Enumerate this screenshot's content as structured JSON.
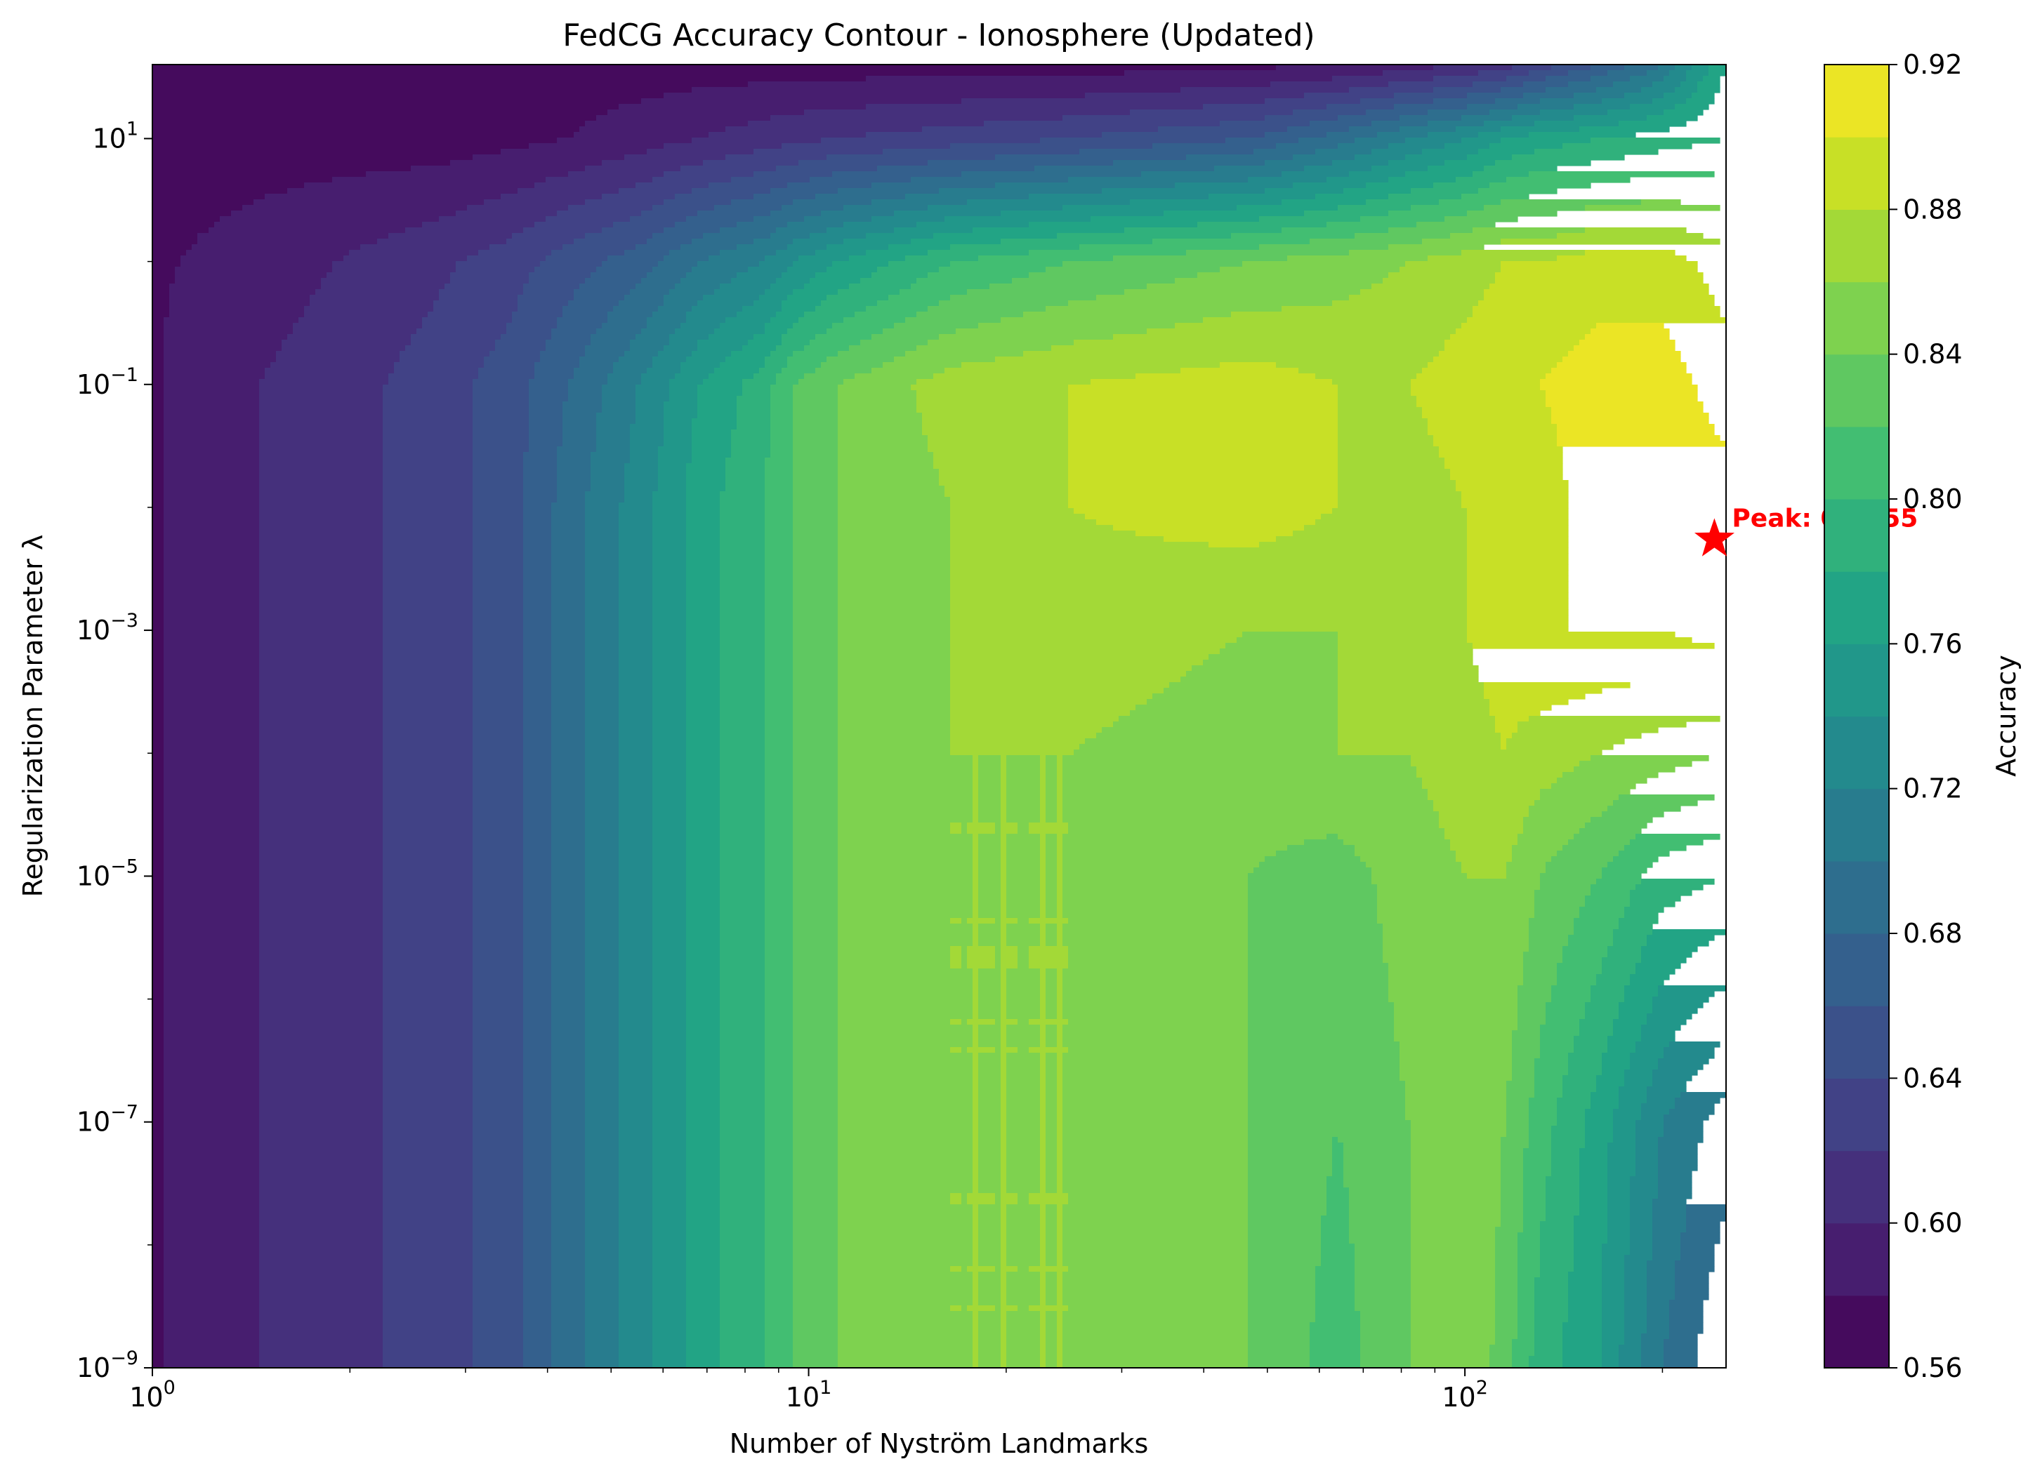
{
  "chart_data": {
    "type": "contour",
    "title": "FedCG Accuracy Contour - Ionosphere (Updated)",
    "xlabel": "Number of Nyström Landmarks",
    "ylabel": "Regularization Parameter λ",
    "xscale": "log",
    "yscale": "log",
    "xlim": [
      1,
      250
    ],
    "ylim": [
      1e-09,
      40
    ],
    "x_ticks": [
      {
        "value": 1,
        "base": "10",
        "exp": "0"
      },
      {
        "value": 10,
        "base": "10",
        "exp": "1"
      },
      {
        "value": 100,
        "base": "10",
        "exp": "2"
      }
    ],
    "y_ticks": [
      {
        "value": 1e-09,
        "base": "10",
        "exp": "−9"
      },
      {
        "value": 1e-07,
        "base": "10",
        "exp": "−7"
      },
      {
        "value": 1e-05,
        "base": "10",
        "exp": "−5"
      },
      {
        "value": 0.001,
        "base": "10",
        "exp": "−3"
      },
      {
        "value": 0.1,
        "base": "10",
        "exp": "−1"
      },
      {
        "value": 10,
        "base": "10",
        "exp": "1"
      }
    ],
    "colorbar": {
      "label": "Accuracy",
      "colormap": "viridis",
      "min": 0.56,
      "max": 0.92,
      "level_step": 0.02,
      "ticks": [
        "0.56",
        "0.60",
        "0.64",
        "0.68",
        "0.72",
        "0.76",
        "0.80",
        "0.84",
        "0.88",
        "0.92"
      ]
    },
    "x_columns": [
      1,
      1.1,
      1.9,
      2.7,
      3.5,
      4.3,
      5.5,
      6.8,
      8.5,
      9.5,
      11,
      16.5,
      25,
      47,
      64,
      82,
      100,
      115,
      130,
      160,
      200,
      250
    ],
    "y_rows": [
      1e-09,
      1e-07,
      1e-05,
      0.0001,
      0.001,
      0.01,
      0.1,
      1,
      10,
      40
    ],
    "accuracy_grid": [
      [
        0.575,
        0.59,
        0.61,
        0.63,
        0.65,
        0.69,
        0.73,
        0.77,
        0.8,
        0.82,
        0.84,
        0.86,
        0.86,
        0.84,
        0.81,
        0.84,
        0.86,
        0.83,
        0.79,
        0.76,
        0.7,
        0.66
      ],
      [
        0.575,
        0.59,
        0.61,
        0.63,
        0.65,
        0.69,
        0.73,
        0.77,
        0.8,
        0.82,
        0.84,
        0.86,
        0.86,
        0.84,
        0.82,
        0.84,
        0.86,
        0.84,
        0.81,
        0.77,
        0.72,
        0.69
      ],
      [
        0.575,
        0.59,
        0.61,
        0.63,
        0.65,
        0.69,
        0.73,
        0.77,
        0.8,
        0.82,
        0.84,
        0.86,
        0.86,
        0.84,
        0.83,
        0.85,
        0.86,
        0.86,
        0.84,
        0.82,
        0.79,
        0.78
      ],
      [
        0.575,
        0.59,
        0.61,
        0.63,
        0.65,
        0.69,
        0.73,
        0.77,
        0.8,
        0.82,
        0.84,
        0.86,
        0.86,
        0.85,
        0.86,
        0.86,
        0.87,
        0.88,
        0.87,
        0.86,
        0.85,
        0.84
      ],
      [
        0.575,
        0.59,
        0.61,
        0.63,
        0.65,
        0.69,
        0.73,
        0.77,
        0.8,
        0.82,
        0.84,
        0.86,
        0.87,
        0.86,
        0.86,
        0.87,
        0.88,
        0.89,
        0.9,
        0.9,
        0.9,
        0.91
      ],
      [
        0.575,
        0.59,
        0.61,
        0.63,
        0.65,
        0.69,
        0.73,
        0.77,
        0.8,
        0.82,
        0.84,
        0.86,
        0.88,
        0.89,
        0.88,
        0.87,
        0.88,
        0.88,
        0.89,
        0.91,
        0.915,
        0.91
      ],
      [
        0.575,
        0.59,
        0.61,
        0.63,
        0.65,
        0.68,
        0.72,
        0.76,
        0.79,
        0.82,
        0.84,
        0.87,
        0.88,
        0.89,
        0.88,
        0.88,
        0.89,
        0.9,
        0.9,
        0.91,
        0.91,
        0.89
      ],
      [
        0.575,
        0.58,
        0.6,
        0.615,
        0.63,
        0.65,
        0.67,
        0.7,
        0.72,
        0.74,
        0.76,
        0.8,
        0.82,
        0.84,
        0.85,
        0.86,
        0.87,
        0.88,
        0.88,
        0.89,
        0.89,
        0.87
      ],
      [
        0.57,
        0.57,
        0.57,
        0.57,
        0.575,
        0.58,
        0.59,
        0.6,
        0.61,
        0.615,
        0.62,
        0.63,
        0.64,
        0.66,
        0.69,
        0.72,
        0.74,
        0.76,
        0.77,
        0.78,
        0.79,
        0.8
      ],
      [
        0.57,
        0.57,
        0.57,
        0.57,
        0.57,
        0.57,
        0.57,
        0.57,
        0.57,
        0.57,
        0.57,
        0.57,
        0.57,
        0.575,
        0.58,
        0.59,
        0.6,
        0.61,
        0.63,
        0.66,
        0.7,
        0.78
      ]
    ],
    "peak": {
      "label": "Peak: 0.9155",
      "x": 240,
      "y": 0.0055,
      "marker": "star",
      "color": "#ff0000"
    }
  }
}
